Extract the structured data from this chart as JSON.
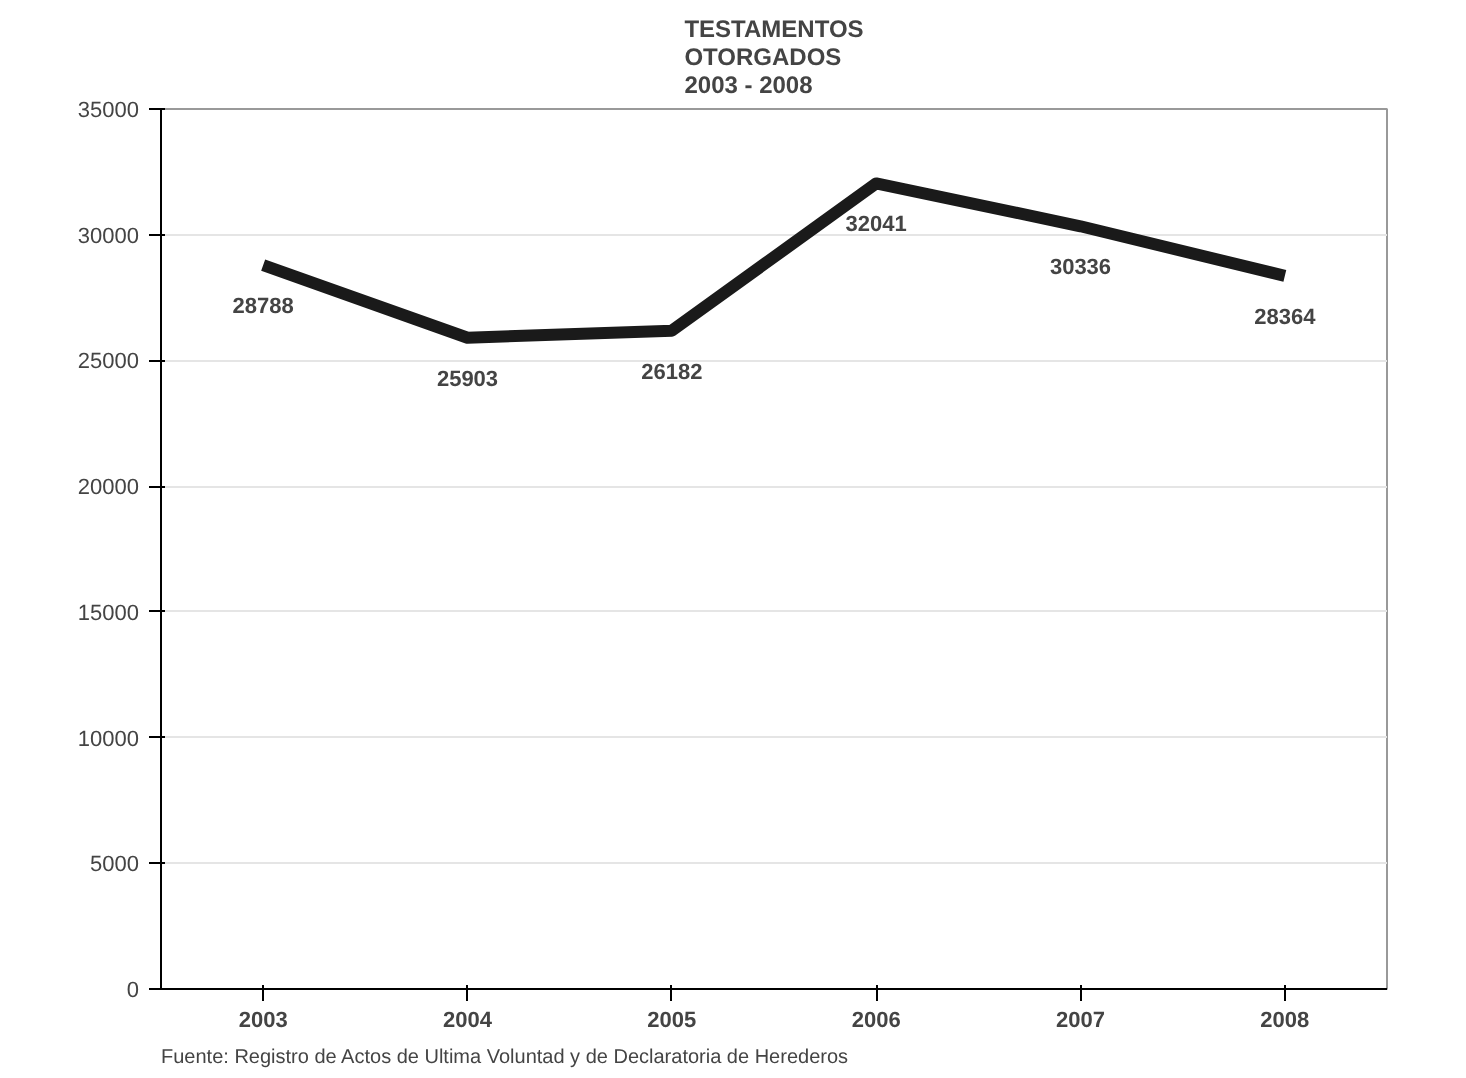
{
  "chart_data": {
    "type": "line",
    "title": "TESTAMENTOS\nOTORGADOS\n2003 - 2008",
    "categories": [
      "2003",
      "2004",
      "2005",
      "2006",
      "2007",
      "2008"
    ],
    "series": [
      {
        "color": "#1a1a1a",
        "values": [
          28788,
          25903,
          26182,
          32041,
          30336,
          28364
        ]
      }
    ],
    "ylim": [
      0,
      35000
    ],
    "yticks": [
      0,
      5000,
      10000,
      15000,
      20000,
      25000,
      30000,
      35000
    ],
    "grid": "y",
    "data_labels": true,
    "marker": "none",
    "line_style": "solid",
    "annotations": [
      "Fuente:  Registro de Actos de Ultima Voluntad y de Declaratoria de Herederos"
    ]
  }
}
